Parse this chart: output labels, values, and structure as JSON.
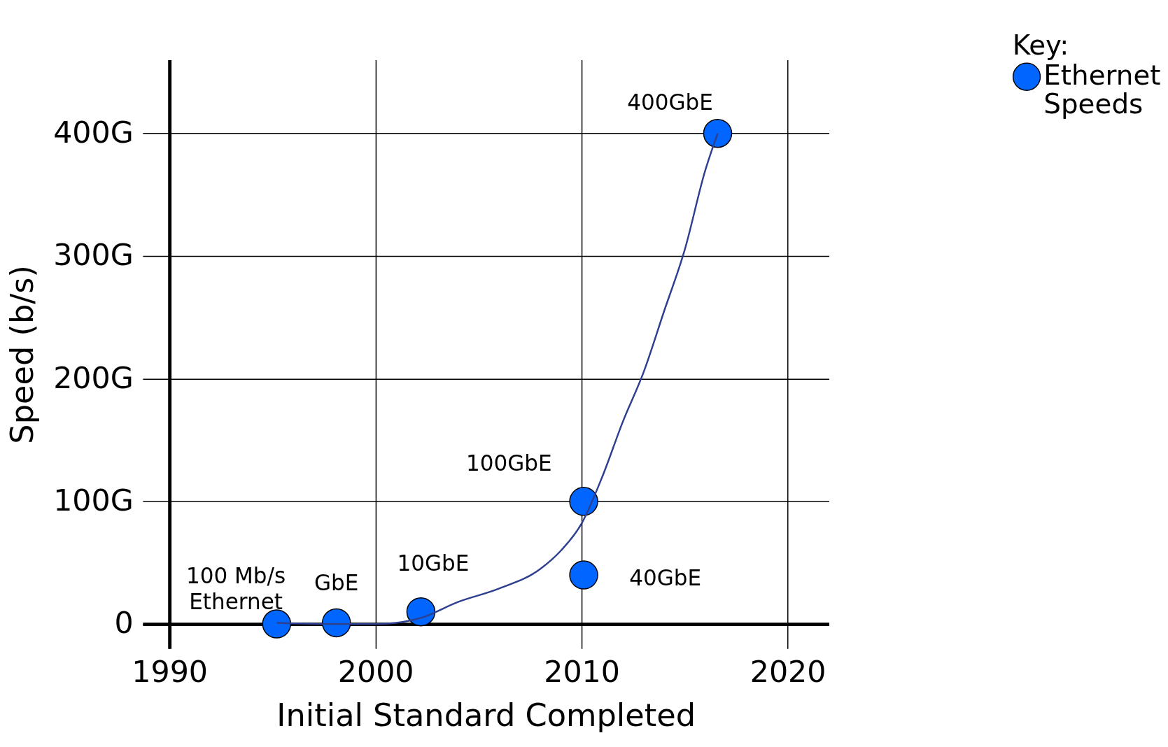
{
  "chart_data": {
    "type": "scatter",
    "xlabel": "Initial Standard Completed",
    "ylabel": "Speed (b/s)",
    "legend_title": "Key:",
    "legend": "top right",
    "grid": true,
    "xlim": [
      1988.7,
      2022
    ],
    "ylim": [
      -20,
      460
    ],
    "xticks": [
      1990,
      2000,
      2010,
      2020
    ],
    "yticks": [
      0,
      {
        "value": 100,
        "label": "100G"
      },
      {
        "value": 200,
        "label": "200G"
      },
      {
        "value": 300,
        "label": "300G"
      },
      {
        "value": 400,
        "label": "400G"
      }
    ],
    "series": [
      {
        "name": "Ethernet Speeds",
        "marker": "circle",
        "color": "#0066ff",
        "x": [
          1995.2,
          1998.1,
          2002.2,
          2010.1,
          2010.1,
          2016.6
        ],
        "values": [
          0.1,
          1,
          10,
          100,
          40,
          400
        ]
      },
      {
        "type": "line",
        "color": "#2e3f8f",
        "line_style": "solid",
        "x": [
          1995.2,
          1998,
          2000,
          2001,
          2002.2,
          2004,
          2006,
          2008,
          2009,
          2010,
          2011,
          2012,
          2013,
          2014,
          2015,
          2016,
          2016.6
        ],
        "values": [
          1,
          0,
          0,
          1,
          5,
          18,
          29,
          45,
          60,
          82,
          120,
          165,
          205,
          255,
          305,
          370,
          400
        ]
      }
    ],
    "annotations": [
      {
        "text": "100 Mb/s\nEthernet",
        "x": 1995.2,
        "y": 0.1
      },
      {
        "text": "GbE",
        "x": 1998.1,
        "y": 1
      },
      {
        "text": "10GbE",
        "x": 2002.2,
        "y": 10
      },
      {
        "text": "100GbE",
        "x": 2010.1,
        "y": 100
      },
      {
        "text": "40GbE",
        "x": 2010.1,
        "y": 40
      },
      {
        "text": "400GbE",
        "x": 2016.6,
        "y": 400
      }
    ]
  }
}
